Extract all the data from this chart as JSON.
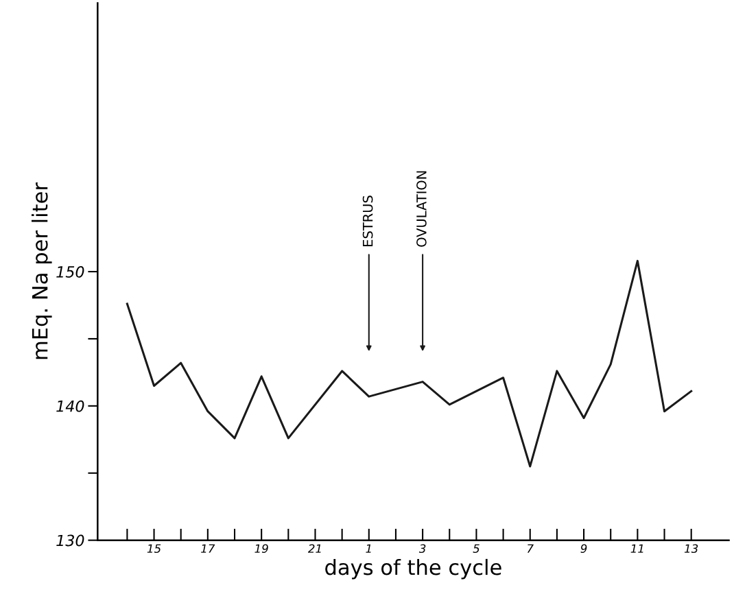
{
  "chart_data": {
    "type": "line",
    "xlabel": "days of the cycle",
    "ylabel": "mEq. Na per liter",
    "categories": [
      null,
      "15",
      null,
      "17",
      null,
      "19",
      null,
      "21",
      null,
      "1",
      null,
      "3",
      null,
      "5",
      null,
      "7",
      null,
      "9",
      null,
      "11",
      null,
      "13"
    ],
    "series": [
      {
        "color": "#1a1a1a",
        "values": [
          147.6,
          141.5,
          143.2,
          139.6,
          137.6,
          142.2,
          137.6,
          null,
          142.6,
          140.7,
          null,
          141.8,
          140.1,
          null,
          142.1,
          135.5,
          142.6,
          139.1,
          143.1,
          150.8,
          139.6,
          141.1
        ]
      }
    ],
    "ylim": [
      130,
      170
    ],
    "yticks": [
      130,
      {
        "value": 135,
        "label": null
      },
      140,
      {
        "value": 145,
        "label": null
      },
      150
    ],
    "annotations": [
      {
        "text": "ESTRUS",
        "x": "1"
      },
      {
        "text": "OVULATION",
        "x": "3"
      }
    ],
    "marker": "none",
    "line_style": "solid",
    "grid": false
  }
}
